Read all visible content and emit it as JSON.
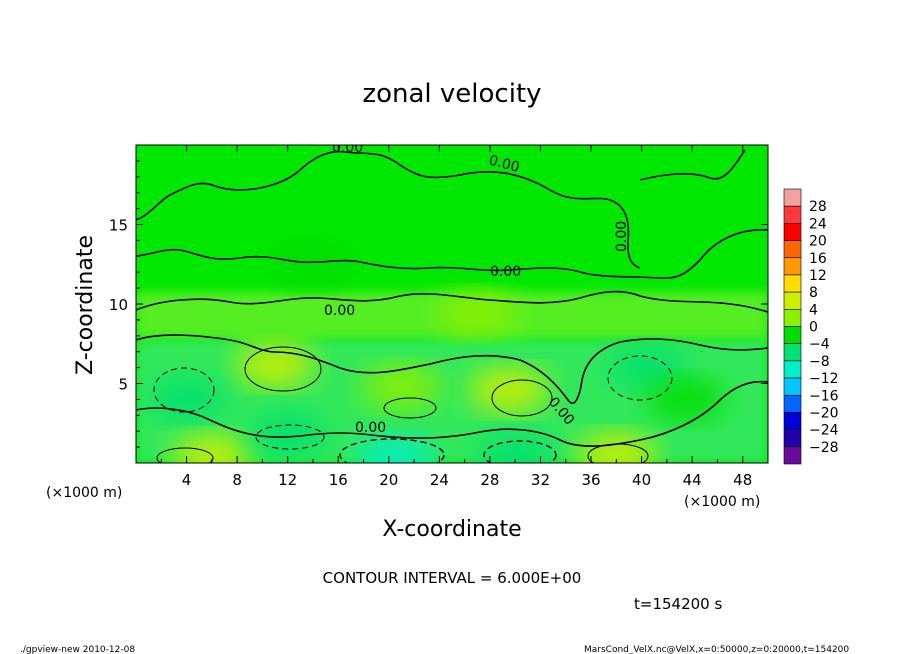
{
  "chart_data": {
    "type": "heatmap",
    "title": "zonal velocity",
    "xlabel": "X-coordinate",
    "ylabel": "Z-coordinate",
    "x_unit_label": "(×1000 m)",
    "y_unit_label": "(×1000 m)",
    "xlim": [
      0,
      50
    ],
    "ylim": [
      0,
      20
    ],
    "x_ticks": [
      4,
      8,
      12,
      16,
      20,
      24,
      28,
      32,
      36,
      40,
      44,
      48
    ],
    "y_ticks": [
      5,
      10,
      15
    ],
    "grid": false,
    "colorbar": {
      "placement": "right",
      "levels": [
        28,
        24,
        20,
        16,
        12,
        8,
        4,
        0,
        -4,
        -8,
        -12,
        -16,
        -20,
        -24,
        -28
      ],
      "colors": [
        "#f2a0a0",
        "#ff3a3a",
        "#ff0000",
        "#ff6600",
        "#ff9900",
        "#ffdd00",
        "#cfee00",
        "#8cf000",
        "#00dd00",
        "#00e070",
        "#00f0c8",
        "#00c8ff",
        "#0066ff",
        "#0000dd",
        "#2200aa",
        "#6a0a9a"
      ]
    },
    "contour_interval_text": "CONTOUR INTERVAL = 6.000E+00",
    "contour_labels": [
      "0.00",
      "0.00",
      "0.00",
      "0.00",
      "0.00",
      "0.00",
      "0.00",
      "0.00"
    ],
    "features": [
      {
        "x": 11,
        "z": 6.2,
        "value": 7
      },
      {
        "x": 4,
        "z": 4.0,
        "value": -5
      },
      {
        "x": 6,
        "z": 0.4,
        "value": 6
      },
      {
        "x": 12,
        "z": 1.8,
        "value": -6
      },
      {
        "x": 20.5,
        "z": 0.3,
        "value": -12
      },
      {
        "x": 21,
        "z": 4.8,
        "value": 3
      },
      {
        "x": 29.5,
        "z": 4.6,
        "value": 6
      },
      {
        "x": 30,
        "z": 0.5,
        "value": -8
      },
      {
        "x": 38,
        "z": 0.5,
        "value": 4
      },
      {
        "x": 40.5,
        "z": 6.0,
        "value": -8
      },
      {
        "x": 43.5,
        "z": 4.0,
        "value": -4
      },
      {
        "x": 27,
        "z": 9.4,
        "value": 3
      },
      {
        "x": 14,
        "z": 12.5,
        "value": -1
      }
    ]
  },
  "time_label": "t=154200 s",
  "footer": {
    "left": "./gpview-new  2010-12-08",
    "right": "MarsCond_VelX.nc@VelX,x=0:50000,z=0:20000,t=154200"
  }
}
